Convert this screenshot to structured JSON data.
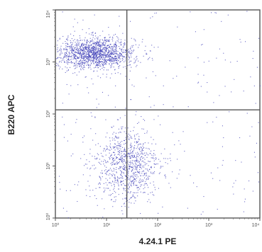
{
  "chart_data": {
    "type": "scatter",
    "xlabel": "4.24.1 PE",
    "ylabel": "B220 APC",
    "x_scale": "log",
    "y_scale": "log",
    "xlim": [
      1,
      10000
    ],
    "ylim": [
      1,
      10000
    ],
    "x_ticks": [
      1,
      10,
      100,
      1000,
      10000
    ],
    "y_ticks": [
      1,
      10,
      100,
      1000,
      10000
    ],
    "x_tick_labels": [
      "10⁰",
      "10¹",
      "10²",
      "10³",
      "10⁴"
    ],
    "y_tick_labels": [
      "10⁰",
      "10¹",
      "10²",
      "10³",
      "10⁴"
    ],
    "quadrant_gate": {
      "x": 25,
      "y": 120
    },
    "point_color": "#3b3bb5",
    "grid": false,
    "legend": "none",
    "clusters": [
      {
        "description_id": "upper-left",
        "x_center": 6,
        "y_center": 1500,
        "x_spread_log": 0.38,
        "y_spread_log": 0.15,
        "count": 1500
      },
      {
        "description_id": "lower-middle",
        "x_center": 25,
        "y_center": 10,
        "x_spread_log": 0.32,
        "y_spread_log": 0.35,
        "count": 900
      },
      {
        "description_id": "background",
        "x_min": 1,
        "x_max": 10000,
        "y_min": 1,
        "y_max": 10000,
        "count": 250
      }
    ]
  }
}
